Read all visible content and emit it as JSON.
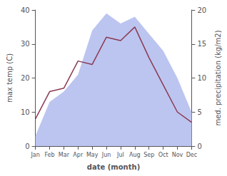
{
  "chart_data": {
    "type": "line",
    "categories": [
      "Jan",
      "Feb",
      "Mar",
      "Apr",
      "May",
      "Jun",
      "Jul",
      "Aug",
      "Sep",
      "Oct",
      "Nov",
      "Dec"
    ],
    "series": [
      {
        "type": "area",
        "color": "#bcc5f0",
        "values": [
          3,
          13,
          16,
          21,
          34,
          39,
          36,
          38,
          33,
          28,
          20,
          10
        ]
      },
      {
        "type": "line",
        "color": "#8B3A52",
        "values": [
          8,
          16,
          17,
          25,
          24,
          32,
          31,
          35,
          26,
          18,
          10,
          7
        ]
      }
    ],
    "xlabel": "date (month)",
    "ylabel": "max temp (C)",
    "y2label": "med. precipitation (kg/m2)",
    "ylim": [
      0,
      40
    ],
    "yticks": [
      0,
      10,
      20,
      30,
      40
    ],
    "y2lim": [
      0,
      20
    ],
    "y2ticks": [
      0,
      5,
      10,
      15,
      20
    ],
    "grid": false
  }
}
